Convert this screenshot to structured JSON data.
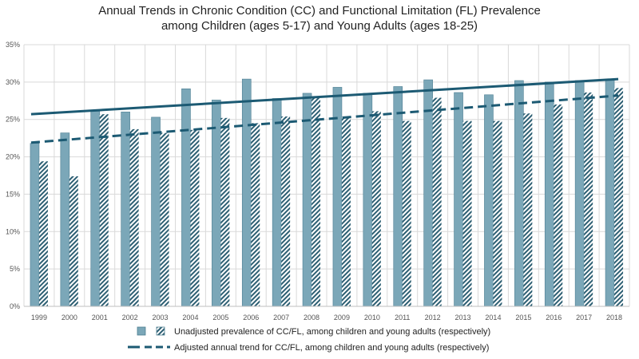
{
  "chart_data": {
    "type": "bar",
    "title_line1": "Annual Trends in Chronic Condition (CC) and Functional Limitation (FL) Prevalence",
    "title_line2": "among Children (ages 5-17) and Young Adults (ages 18-25)",
    "categories": [
      "1999",
      "2000",
      "2001",
      "2002",
      "2003",
      "2004",
      "2005",
      "2006",
      "2007",
      "2008",
      "2009",
      "2010",
      "2011",
      "2012",
      "2013",
      "2014",
      "2015",
      "2016",
      "2017",
      "2018"
    ],
    "series": [
      {
        "group": "children",
        "style": "solid",
        "values": [
          21.8,
          23.2,
          26.1,
          26.0,
          25.3,
          29.1,
          27.6,
          30.4,
          27.8,
          28.5,
          29.3,
          28.5,
          29.4,
          30.3,
          28.6,
          28.3,
          30.2,
          30.0,
          30.2,
          30.4
        ]
      },
      {
        "group": "young_adults",
        "style": "hatched",
        "values": [
          19.4,
          17.4,
          25.7,
          23.7,
          23.2,
          23.6,
          25.2,
          24.5,
          25.4,
          27.9,
          25.3,
          26.1,
          24.8,
          27.9,
          24.8,
          24.8,
          25.8,
          27.0,
          28.6,
          29.2
        ]
      }
    ],
    "trend_lines": [
      {
        "group": "children",
        "style": "solid",
        "start": 25.7,
        "end": 30.4
      },
      {
        "group": "young_adults",
        "style": "dashed",
        "start": 21.9,
        "end": 28.2
      }
    ],
    "ylim": [
      0,
      35
    ],
    "yticks": [
      0,
      5,
      10,
      15,
      20,
      25,
      30,
      35
    ],
    "ytick_labels": [
      "0%",
      "5%",
      "10%",
      "15%",
      "20%",
      "25%",
      "30%",
      "35%"
    ],
    "grid": true,
    "legend_position": "bottom",
    "legend": {
      "bars_label": "Unadjusted prevalence of CC/FL, among children and young adults (respectively)",
      "trend_label": "Adjusted annual trend for CC/FL, among children and young adults (respectively)"
    },
    "colors": {
      "bar_fill": "#7BA7B8",
      "bar_edge": "#4E7F92",
      "hatch_stripe": "#2D5F73",
      "trend_line": "#1C5A73",
      "grid": "#D9D9D9",
      "axis": "#BFBFBF"
    }
  }
}
